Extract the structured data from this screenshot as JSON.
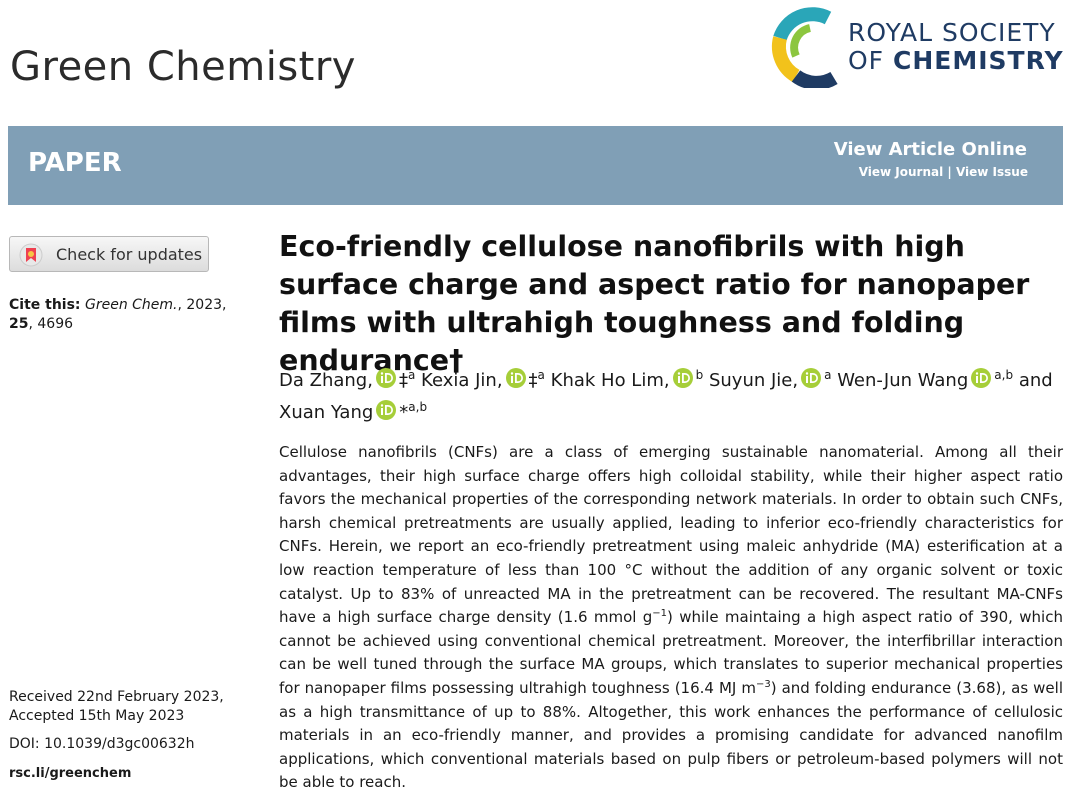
{
  "journal": "Green Chemistry",
  "publisher": {
    "line1": "ROYAL SOCIETY",
    "line2_prefix": "OF",
    "line2_bold": "CHEMISTRY"
  },
  "banner": {
    "article_type": "PAPER",
    "view_online": "View Article Online",
    "view_journal": "View Journal",
    "separator": "|",
    "view_issue": "View Issue"
  },
  "check_updates": "Check for updates",
  "cite": {
    "label": "Cite this:",
    "journal": "Green Chem.",
    "year": ", 2023, ",
    "volume": "25",
    "pages": ", 4696"
  },
  "title": "Eco-friendly cellulose nanofibrils with high surface charge and aspect ratio for nanopaper films with ultrahigh toughness and folding endurance†",
  "authors": [
    {
      "name": "Da Zhang,",
      "marker": "‡",
      "affiliation": "a"
    },
    {
      "name": "Kexia Jin,",
      "marker": "‡",
      "affiliation": "a"
    },
    {
      "name": "Khak Ho Lim,",
      "affiliation": "b"
    },
    {
      "name": "Suyun Jie,",
      "affiliation": "a"
    },
    {
      "name": "Wen-Jun Wang",
      "affiliation": "a,b"
    },
    {
      "prefix": "and",
      "name": "Xuan Yang",
      "marker": "*",
      "affiliation": "a,b"
    }
  ],
  "abstract": [
    "Cellulose nanofibrils (CNFs) are a class of emerging sustainable nanomaterial. Among all their advantages, their high surface charge offers high colloidal stability, while their higher aspect ratio favors the mechanical properties of the corresponding network materials. In order to obtain such CNFs, harsh chemical pretreatments are usually applied, leading to inferior eco-friendly characteristics for CNFs. Herein, we report an eco-friendly pretreatment using maleic anhydride (MA) esterification at a low reaction temperature of less than 100 °C without the addition of any organic solvent or toxic catalyst. Up to 83% of unreacted MA in the pretreatment can be recovered. The resultant MA-CNFs have a high surface charge density (1.6 mmol g",
    "−1",
    ") while maintaing a high aspect ratio of 390, which cannot be achieved using conventional chemical pretreatment. Moreover, the interfibrillar interaction can be well tuned through the surface MA groups, which translates to superior mechanical properties for nanopaper films possessing ultrahigh toughness (16.4 MJ m",
    "−3",
    ") and folding endurance (3.68), as well as a high transmittance of up to 88%. Altogether, this work enhances the performance of cellulosic materials in an eco-friendly manner, and provides a promising candidate for advanced nanofilm applications, which conventional materials based on pulp fibers or petroleum-based polymers will not be able to reach."
  ],
  "received": "Received 22nd February 2023,",
  "accepted": "Accepted 15th May 2023",
  "doi": "DOI: 10.1039/d3gc00632h",
  "url": "rsc.li/greenchem"
}
